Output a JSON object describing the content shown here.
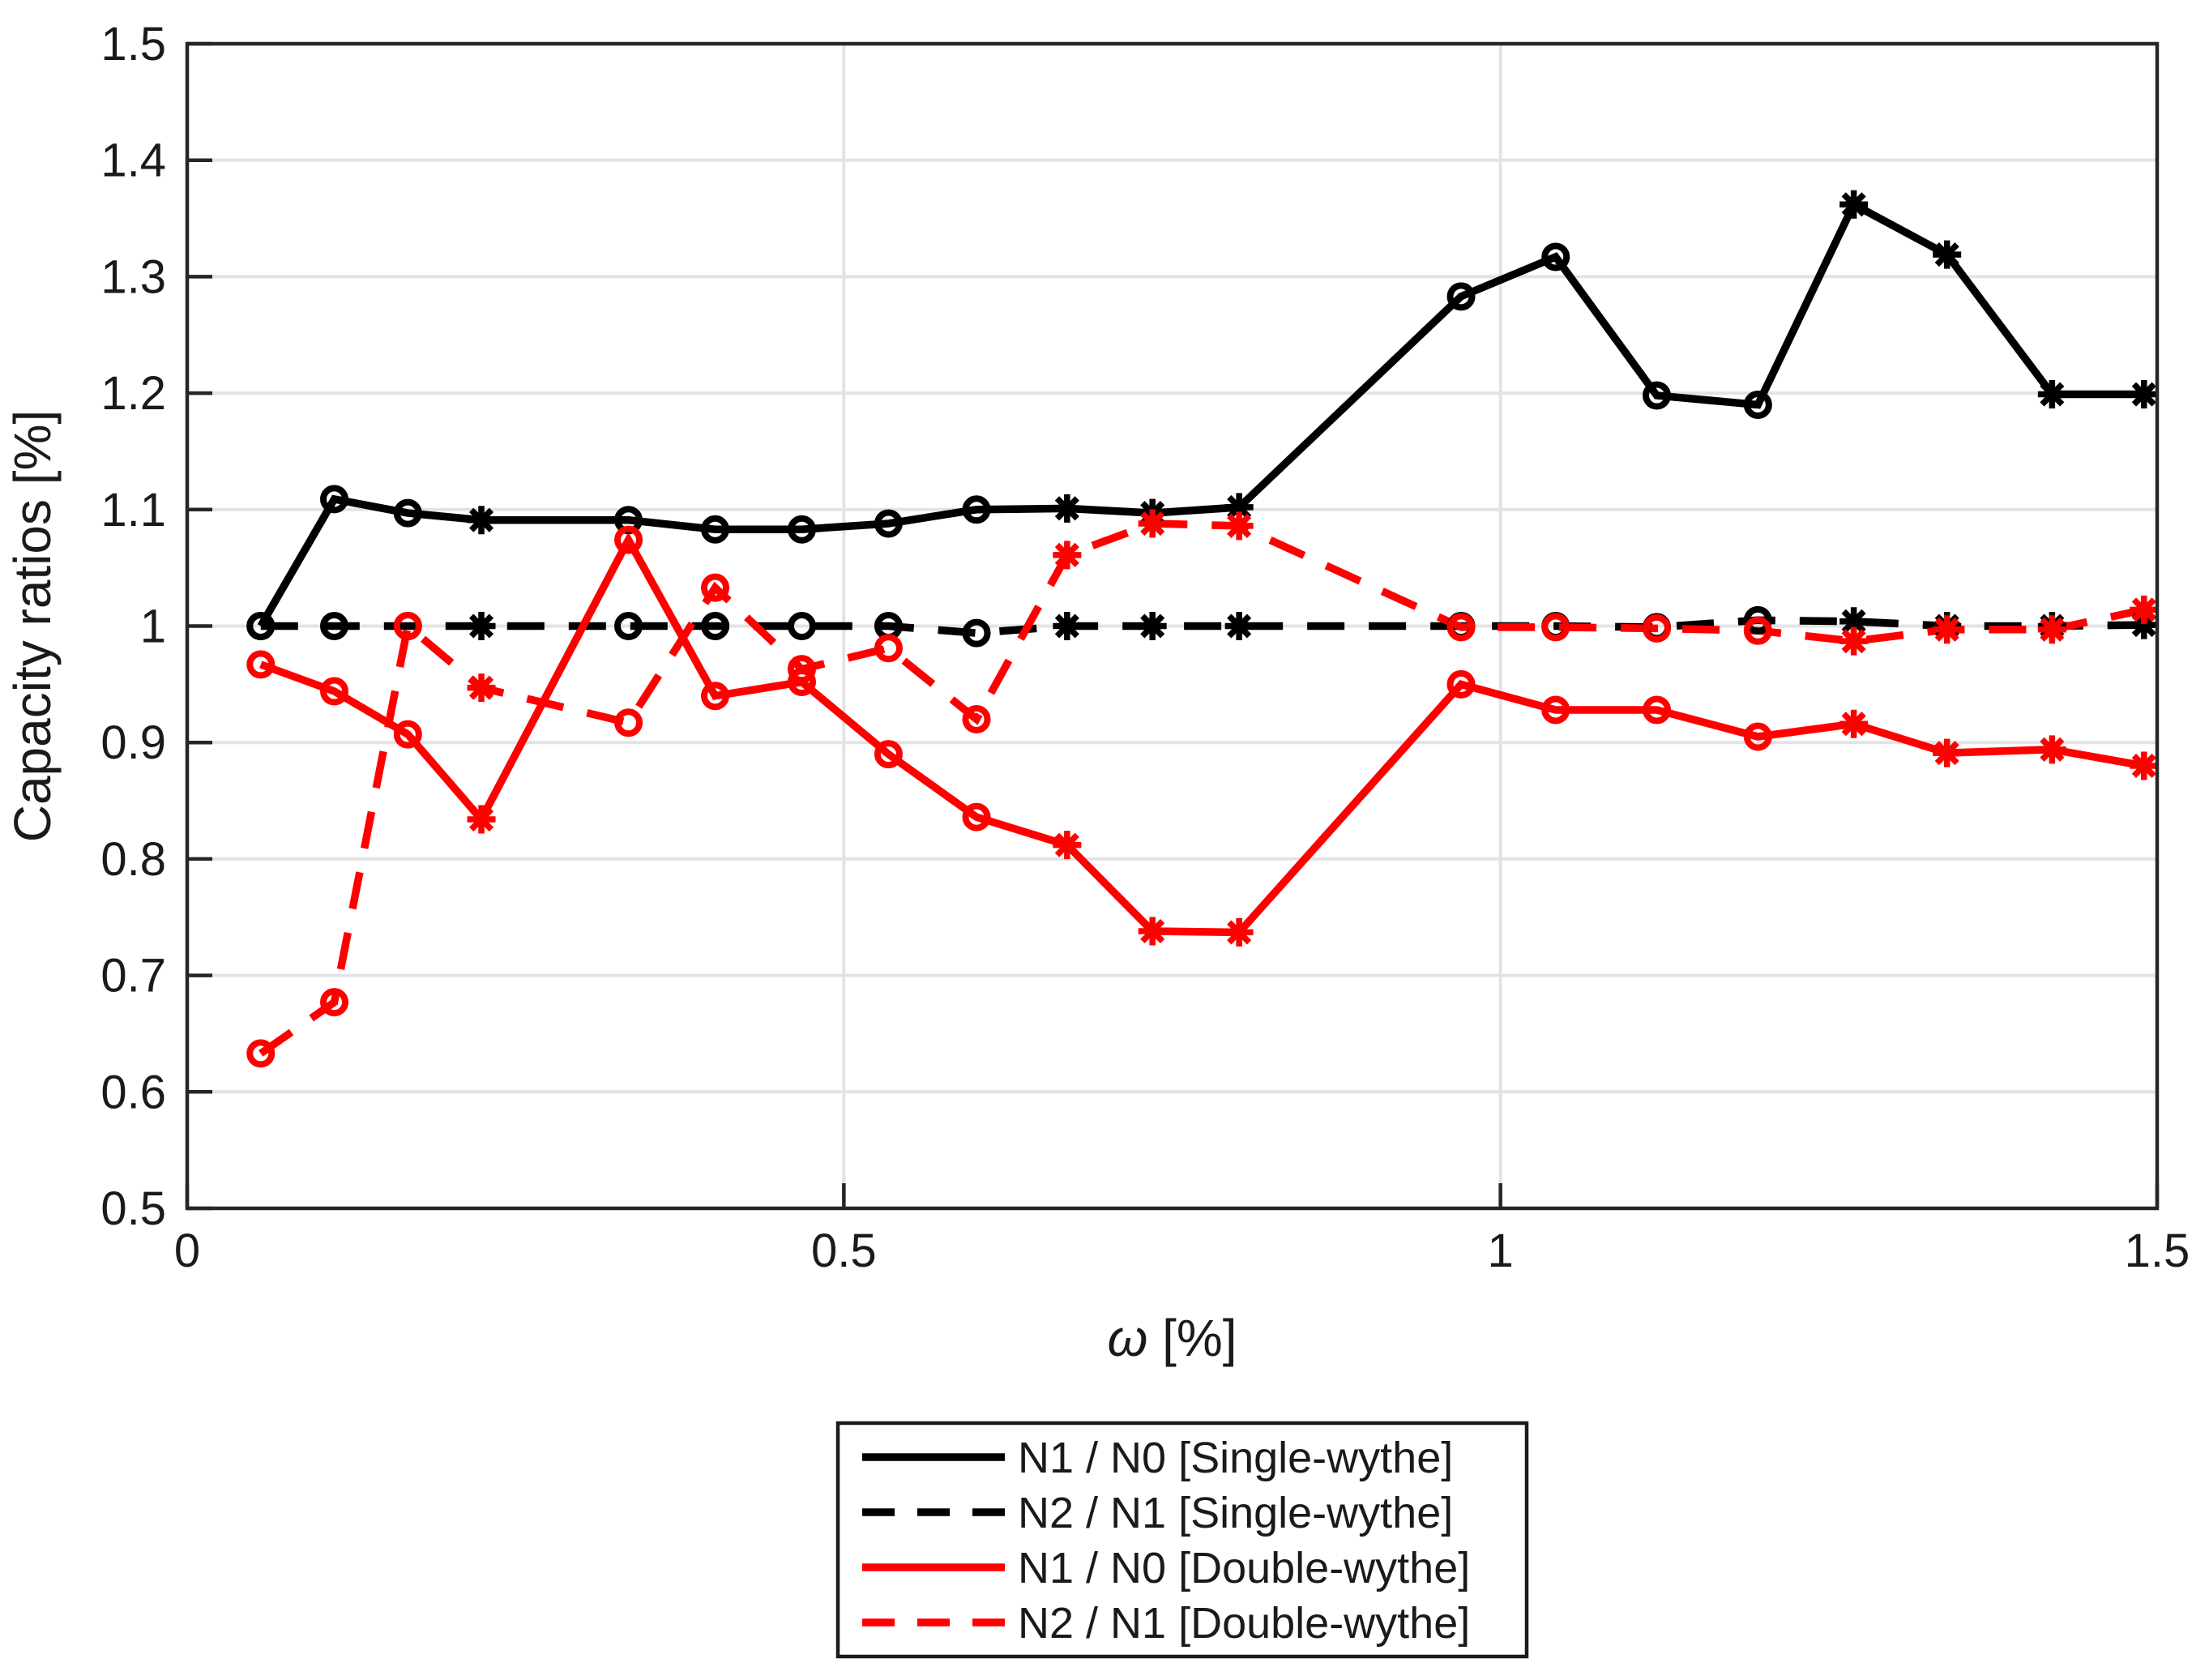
{
  "chart_data": {
    "type": "line",
    "title": "",
    "xlabel": "ω [%]",
    "ylabel": "Capacity ratios [%]",
    "xlim": [
      0,
      1.5
    ],
    "ylim": [
      0.5,
      1.5
    ],
    "xticks": [
      0,
      0.5,
      1,
      1.5
    ],
    "xtick_labels": [
      "0",
      "0.5",
      "1",
      "1.5"
    ],
    "yticks": [
      0.5,
      0.6,
      0.7,
      0.8,
      0.9,
      1.0,
      1.1,
      1.2,
      1.3,
      1.4,
      1.5
    ],
    "ytick_labels": [
      "0.5",
      "0.6",
      "0.7",
      "0.8",
      "0.9",
      "1",
      "1.1",
      "1.2",
      "1.3",
      "1.4",
      "1.5"
    ],
    "grid": true,
    "legend_position": "below-outside",
    "x": [
      0.056,
      0.112,
      0.168,
      0.224,
      0.336,
      0.402,
      0.468,
      0.534,
      0.601,
      0.67,
      0.735,
      0.801,
      0.97,
      1.042,
      1.119,
      1.196,
      1.269,
      1.34,
      1.42,
      1.49
    ],
    "markers": [
      "o",
      "o",
      "o",
      "*",
      "o",
      "o",
      "o",
      "o",
      "o",
      "*",
      "*",
      "*",
      "o",
      "o",
      "o",
      "o",
      "*",
      "*",
      "*",
      "*"
    ],
    "series": [
      {
        "name": "N1 / N0 [Single-wythe]",
        "color": "#000000",
        "style": "solid",
        "values": [
          1.0,
          1.109,
          1.097,
          1.091,
          1.091,
          1.083,
          1.083,
          1.088,
          1.1,
          1.101,
          1.097,
          1.102,
          1.283,
          1.317,
          1.198,
          1.19,
          1.362,
          1.319,
          1.199,
          1.199
        ]
      },
      {
        "name": "N2 / N1 [Single-wythe]",
        "color": "#000000",
        "style": "dashed",
        "values": [
          1.0,
          1.0,
          1.0,
          1.0,
          1.0,
          1.0,
          1.0,
          1.0,
          0.994,
          1.0,
          1.0,
          1.0,
          1.0,
          1.0,
          0.999,
          1.005,
          1.004,
          1.0,
          1.0,
          1.001
        ]
      },
      {
        "name": "N1 / N0 [Double-wythe]",
        "color": "#ff0000",
        "style": "solid",
        "values": [
          0.967,
          0.944,
          0.907,
          0.834,
          1.074,
          0.94,
          0.952,
          0.89,
          0.836,
          0.812,
          0.738,
          0.737,
          0.95,
          0.928,
          0.928,
          0.905,
          0.916,
          0.891,
          0.894,
          0.88
        ]
      },
      {
        "name": "N2 / N1 [Double-wythe]",
        "color": "#ff0000",
        "style": "dashed",
        "values": [
          0.633,
          0.677,
          1.0,
          0.947,
          0.917,
          1.033,
          0.963,
          0.981,
          0.92,
          1.061,
          1.088,
          1.086,
          0.999,
          0.999,
          0.998,
          0.996,
          0.987,
          0.997,
          0.997,
          1.014
        ]
      }
    ]
  }
}
